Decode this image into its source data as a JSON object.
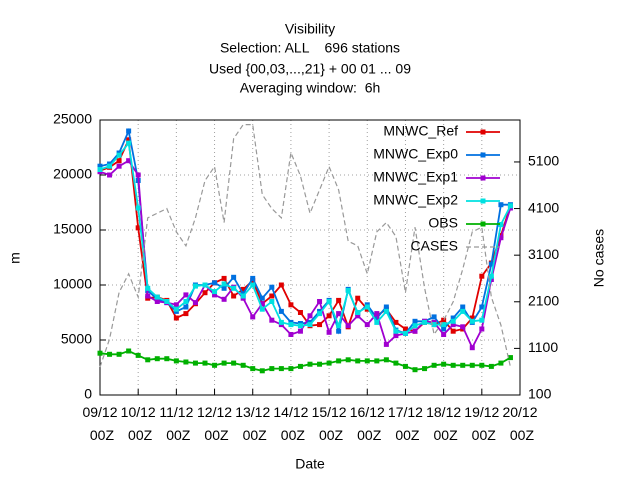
{
  "chart_data": {
    "type": "line",
    "title": [
      "Visibility",
      "Selection: ALL    696 stations",
      "Used {00,03,...,21} + 00 01 ... 09",
      "Averaging window:  6h"
    ],
    "xlabel": "Date",
    "ylabel": "m",
    "y2label": "No cases",
    "categories": [
      "09/12 00Z",
      null,
      null,
      null,
      "10/12 00Z",
      null,
      null,
      null,
      "11/12 00Z",
      null,
      null,
      null,
      "12/12 00Z",
      null,
      null,
      null,
      "13/12 00Z",
      null,
      null,
      null,
      "14/12 00Z",
      null,
      null,
      null,
      "15/12 00Z",
      null,
      null,
      null,
      "16/12 00Z",
      null,
      null,
      null,
      "17/12 00Z",
      null,
      null,
      null,
      "18/12 00Z",
      null,
      null,
      null,
      "19/12 00Z",
      null,
      null,
      null,
      "20/12 00Z"
    ],
    "ylim": [
      0,
      25000
    ],
    "yticks": [
      0,
      5000,
      10000,
      15000,
      20000,
      25000
    ],
    "y2lim": [
      100,
      6000
    ],
    "y2ticks": [
      100,
      1100,
      2100,
      3100,
      4100,
      5100
    ],
    "grid": true,
    "legend": "top-right",
    "series": [
      {
        "name": "MNWC_Ref",
        "color": "#e00000",
        "values": [
          20400,
          20700,
          21300,
          23200,
          15200,
          8800,
          8900,
          8600,
          7000,
          7400,
          8300,
          9300,
          10200,
          10600,
          9000,
          9600,
          10400,
          8300,
          9000,
          10000,
          8200,
          7500,
          6300,
          6400,
          7200,
          8600,
          6200,
          8800,
          7800,
          7200,
          7800,
          6600,
          6000,
          5800,
          6600,
          6400,
          6800,
          5800,
          6000,
          7000,
          10800,
          12000,
          14500,
          17200,
          null
        ]
      },
      {
        "name": "MNWC_Exp0",
        "color": "#0070e0",
        "values": [
          20800,
          21000,
          22000,
          24000,
          19500,
          9500,
          8700,
          8400,
          7600,
          8000,
          10000,
          10000,
          10200,
          9700,
          10700,
          9200,
          10600,
          8800,
          9800,
          7600,
          6600,
          6500,
          6600,
          7600,
          8600,
          5800,
          9600,
          7400,
          8200,
          7000,
          8000,
          5900,
          5600,
          6700,
          6700,
          7100,
          6000,
          7000,
          8000,
          6600,
          8000,
          11900,
          17300,
          17300,
          null
        ]
      },
      {
        "name": "MNWC_Exp1",
        "color": "#a000d0",
        "values": [
          20300,
          20000,
          20800,
          21300,
          20000,
          9000,
          8500,
          8400,
          8200,
          9100,
          8400,
          10000,
          9100,
          8700,
          9800,
          8800,
          7100,
          8300,
          6800,
          6400,
          5500,
          5800,
          7200,
          8500,
          5700,
          7400,
          6300,
          7200,
          6400,
          7400,
          4600,
          5400,
          5600,
          5800,
          6700,
          6600,
          5500,
          6400,
          6200,
          4300,
          6000,
          10500,
          14300,
          17000,
          null
        ]
      },
      {
        "name": "MNWC_Exp2",
        "color": "#00e0e0",
        "values": [
          20500,
          20800,
          21800,
          22900,
          17000,
          9700,
          8900,
          8500,
          7800,
          8500,
          9900,
          10000,
          9400,
          10100,
          9700,
          9000,
          10000,
          7800,
          8500,
          6600,
          6400,
          6300,
          6400,
          7400,
          8500,
          6300,
          9500,
          7500,
          8000,
          6600,
          7600,
          5800,
          5600,
          6300,
          6600,
          6400,
          6400,
          6700,
          7600,
          6700,
          6800,
          10800,
          15500,
          17200,
          null
        ]
      },
      {
        "name": "OBS",
        "color": "#00b000",
        "values": [
          3800,
          3700,
          3700,
          4000,
          3600,
          3200,
          3300,
          3300,
          3100,
          3000,
          2900,
          2900,
          2700,
          2900,
          2900,
          2700,
          2400,
          2200,
          2400,
          2400,
          2400,
          2600,
          2800,
          2800,
          2900,
          3100,
          3200,
          3100,
          3100,
          3100,
          3200,
          2900,
          2600,
          2300,
          2400,
          2700,
          2800,
          2700,
          2700,
          2700,
          2700,
          2600,
          2900,
          3400,
          null
        ]
      },
      {
        "name": "CASES",
        "color": "#999999",
        "axis": "y2",
        "dashed": true,
        "values": [
          700,
          1300,
          2300,
          2700,
          2200,
          3900,
          4000,
          4100,
          3600,
          3300,
          3900,
          4700,
          5000,
          3800,
          5600,
          5900,
          5900,
          4400,
          4100,
          3900,
          5300,
          4800,
          4000,
          4500,
          5000,
          4500,
          3400,
          3300,
          2700,
          3600,
          3800,
          3500,
          2300,
          3700,
          2400,
          1400,
          1700,
          2100,
          2800,
          3600,
          3700,
          2200,
          1600,
          700,
          null
        ]
      }
    ]
  }
}
